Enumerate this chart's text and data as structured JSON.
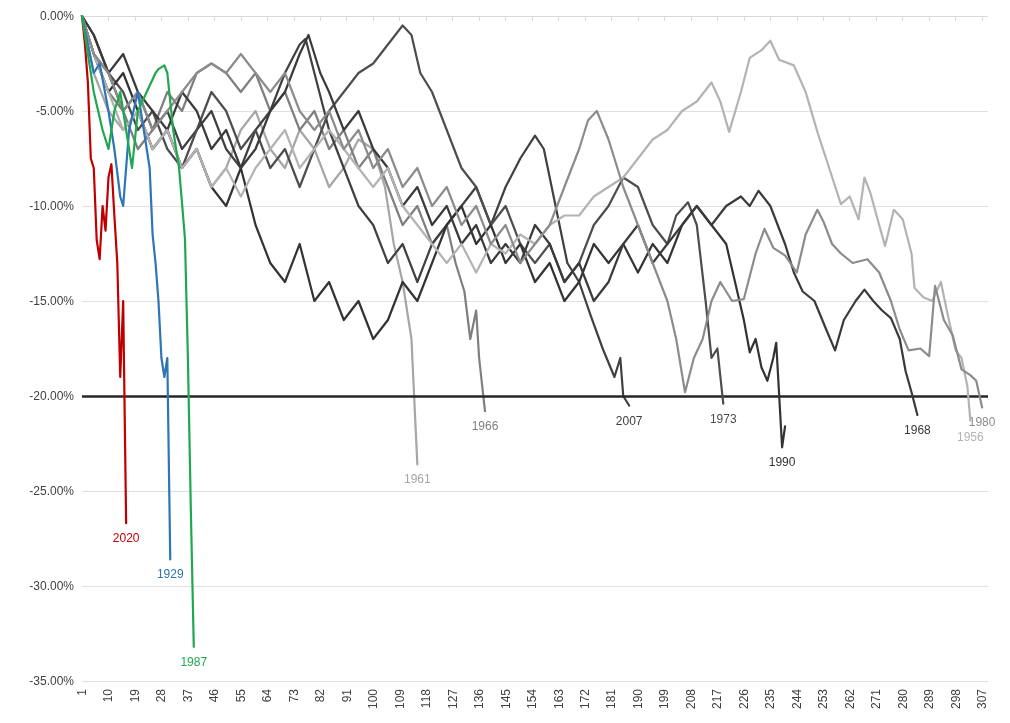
{
  "chart_data": {
    "type": "line",
    "xlim": [
      1,
      309
    ],
    "xticks": [
      1,
      10,
      19,
      28,
      37,
      46,
      55,
      64,
      73,
      82,
      91,
      100,
      109,
      118,
      127,
      136,
      145,
      154,
      163,
      172,
      181,
      190,
      199,
      208,
      217,
      226,
      235,
      244,
      253,
      262,
      271,
      280,
      289,
      298,
      307
    ],
    "ylim": [
      -35,
      0
    ],
    "yticks": [
      {
        "value": 0,
        "label": "0.00%"
      },
      {
        "value": -5,
        "label": "-5.00%"
      },
      {
        "value": -10,
        "label": "-10.00%"
      },
      {
        "value": -15,
        "label": "-15.00%"
      },
      {
        "value": -20,
        "label": "-20.00%"
      },
      {
        "value": -25,
        "label": "-25.00%"
      },
      {
        "value": -30,
        "label": "-30.00%"
      },
      {
        "value": -35,
        "label": "-35.00%"
      }
    ],
    "grid": "y",
    "legend": false,
    "marker": "none",
    "line_style": "solid",
    "ref_lines": [
      {
        "axis": "y",
        "value": -20,
        "color": "#262626"
      }
    ],
    "series": [
      {
        "name": "1961",
        "color": "#a6a6a6",
        "x": [
          1,
          5,
          10,
          15,
          20,
          25,
          30,
          35,
          40,
          45,
          50,
          55,
          60,
          65,
          70,
          75,
          80,
          85,
          90,
          95,
          100,
          104,
          107,
          110,
          112,
          113,
          115
        ],
        "values": [
          0,
          -3,
          -5,
          -6,
          -5,
          -7,
          -6,
          -8,
          -7,
          -9,
          -8,
          -6,
          -5,
          -7,
          -8,
          -6,
          -7,
          -9,
          -8,
          -6.5,
          -7,
          -9,
          -12,
          -14,
          -16,
          -17,
          -23.6
        ]
      },
      {
        "name": "1966",
        "color": "#7f7f7f",
        "x": [
          1,
          5,
          10,
          15,
          20,
          25,
          30,
          35,
          40,
          45,
          50,
          55,
          60,
          65,
          70,
          75,
          80,
          85,
          90,
          95,
          100,
          105,
          110,
          115,
          120,
          125,
          128,
          131,
          133,
          135,
          136,
          138
        ],
        "values": [
          0,
          -2,
          -4,
          -5,
          -7,
          -6,
          -4,
          -5,
          -3,
          -2.5,
          -3,
          -4,
          -3,
          -5,
          -4,
          -6,
          -5,
          -7,
          -6,
          -8,
          -7,
          -9,
          -11,
          -10,
          -12,
          -11,
          -13,
          -14.5,
          -17,
          -15.5,
          -18,
          -20.8
        ]
      },
      {
        "name": "2007",
        "color": "#404040",
        "x": [
          1,
          5,
          10,
          15,
          20,
          25,
          30,
          35,
          40,
          45,
          50,
          55,
          60,
          65,
          70,
          75,
          77,
          80,
          85,
          90,
          95,
          100,
          105,
          110,
          115,
          120,
          125,
          130,
          135,
          140,
          145,
          150,
          155,
          158,
          162,
          166,
          170,
          174,
          178,
          182,
          184,
          185,
          187
        ],
        "values": [
          0,
          -2,
          -3,
          -5,
          -4,
          -6,
          -5,
          -7,
          -6,
          -5,
          -7,
          -8,
          -6,
          -5,
          -3,
          -1.5,
          -1.2,
          -3,
          -6,
          -8,
          -10,
          -11,
          -13,
          -12,
          -14,
          -12,
          -11,
          -10,
          -9,
          -11,
          -9,
          -7.5,
          -6.3,
          -7,
          -10,
          -13,
          -14,
          -15.8,
          -17.5,
          -19,
          -18,
          -20,
          -20.5
        ]
      },
      {
        "name": "1973",
        "color": "#4d4d4d",
        "x": [
          1,
          5,
          10,
          15,
          20,
          25,
          30,
          35,
          40,
          45,
          50,
          55,
          60,
          65,
          70,
          75,
          80,
          85,
          90,
          95,
          100,
          105,
          110,
          113,
          116,
          120,
          125,
          130,
          135,
          140,
          145,
          150,
          155,
          160,
          165,
          170,
          175,
          180,
          185,
          190,
          195,
          200,
          203,
          207,
          210,
          213,
          215,
          217,
          219
        ],
        "values": [
          0,
          -1,
          -3,
          -4,
          -6,
          -5,
          -7,
          -8,
          -6,
          -4,
          -5,
          -7,
          -6,
          -8,
          -7,
          -9,
          -7,
          -5,
          -4,
          -3,
          -2.5,
          -1.5,
          -0.5,
          -1,
          -3,
          -4,
          -6,
          -8,
          -9,
          -11,
          -10,
          -12,
          -13,
          -12,
          -14,
          -13,
          -11,
          -10,
          -8.5,
          -9,
          -11,
          -12,
          -10.5,
          -9.8,
          -11,
          -15,
          -18,
          -17.5,
          -20.4
        ]
      },
      {
        "name": "1990",
        "color": "#333333",
        "x": [
          1,
          5,
          10,
          15,
          20,
          25,
          30,
          35,
          40,
          45,
          50,
          55,
          60,
          65,
          70,
          75,
          80,
          85,
          90,
          95,
          100,
          105,
          110,
          115,
          120,
          125,
          130,
          135,
          140,
          145,
          150,
          155,
          160,
          165,
          170,
          175,
          180,
          185,
          190,
          195,
          200,
          205,
          210,
          215,
          220,
          223,
          226,
          228,
          230,
          232,
          234,
          236,
          237,
          239,
          240
        ],
        "values": [
          0,
          -2,
          -4,
          -3,
          -5,
          -7,
          -6,
          -8,
          -7,
          -9,
          -10,
          -8,
          -11,
          -13,
          -14,
          -12,
          -15,
          -14,
          -16,
          -15,
          -17,
          -16,
          -14,
          -15,
          -13,
          -11,
          -10,
          -12,
          -11,
          -13,
          -12,
          -14,
          -13,
          -15,
          -14,
          -12,
          -13,
          -12,
          -13.5,
          -12,
          -13,
          -11,
          -10,
          -11,
          -12,
          -14,
          -16,
          -17.7,
          -17,
          -18.5,
          -19.2,
          -18,
          -17.2,
          -22.7,
          -21.6
        ]
      },
      {
        "name": "1968",
        "color": "#3a3a3a",
        "x": [
          1,
          5,
          10,
          15,
          20,
          25,
          30,
          35,
          40,
          45,
          50,
          55,
          60,
          65,
          70,
          75,
          78,
          82,
          85,
          90,
          95,
          100,
          105,
          110,
          115,
          120,
          125,
          130,
          135,
          140,
          145,
          150,
          155,
          160,
          165,
          170,
          175,
          180,
          185,
          190,
          195,
          200,
          205,
          210,
          215,
          220,
          225,
          228,
          231,
          235,
          240,
          243,
          246,
          250,
          254,
          257,
          260,
          264,
          267,
          270,
          273,
          276,
          279,
          281,
          283,
          285
        ],
        "values": [
          0,
          -1,
          -3,
          -2,
          -4,
          -5,
          -6,
          -4,
          -5,
          -7,
          -6,
          -8,
          -7,
          -5,
          -4,
          -2,
          -1,
          -3,
          -4,
          -6,
          -5,
          -7,
          -8,
          -10,
          -9,
          -11,
          -10,
          -12,
          -11,
          -13,
          -12,
          -13,
          -11,
          -12,
          -14,
          -13,
          -15,
          -14,
          -12,
          -11,
          -13,
          -12,
          -11,
          -10,
          -11,
          -10,
          -9.5,
          -10,
          -9.2,
          -10,
          -12,
          -13.5,
          -14.5,
          -15,
          -16.5,
          -17.6,
          -16,
          -15,
          -14.4,
          -15,
          -15.5,
          -15.9,
          -17,
          -18.7,
          -19.8,
          -21
        ]
      },
      {
        "name": "1956",
        "color": "#b3b3b3",
        "x": [
          1,
          5,
          10,
          15,
          20,
          25,
          30,
          35,
          40,
          45,
          50,
          55,
          60,
          65,
          70,
          75,
          80,
          85,
          90,
          95,
          100,
          105,
          110,
          115,
          120,
          125,
          130,
          135,
          140,
          145,
          150,
          155,
          160,
          165,
          170,
          175,
          180,
          185,
          190,
          195,
          200,
          205,
          210,
          215,
          218,
          221,
          225,
          228,
          232,
          235,
          238,
          243,
          247,
          251,
          255,
          259,
          262,
          265,
          267,
          269,
          272,
          274,
          277,
          280,
          283,
          284,
          287,
          290,
          293,
          295,
          298,
          300,
          302,
          303
        ],
        "values": [
          0,
          -2,
          -4,
          -6,
          -5,
          -7,
          -6,
          -8,
          -7,
          -9,
          -8,
          -9.5,
          -8,
          -7,
          -6,
          -8,
          -7,
          -6,
          -7,
          -8,
          -9,
          -8,
          -10,
          -11,
          -12,
          -13,
          -12,
          -13.5,
          -12,
          -12.5,
          -11.5,
          -12,
          -11,
          -10.5,
          -10.5,
          -9.5,
          -9,
          -8.5,
          -7.5,
          -6.5,
          -6,
          -5,
          -4.5,
          -3.5,
          -4.5,
          -6.1,
          -4,
          -2.2,
          -1.8,
          -1.3,
          -2.3,
          -2.6,
          -4,
          -6.1,
          -8,
          -9.9,
          -9.5,
          -10.7,
          -8.5,
          -9.3,
          -11,
          -12.1,
          -10.2,
          -10.7,
          -12.5,
          -14.3,
          -14.8,
          -15,
          -14,
          -15.5,
          -17.6,
          -18,
          -19.5,
          -21.3
        ]
      },
      {
        "name": "1980",
        "color": "#8c8c8c",
        "x": [
          1,
          5,
          10,
          15,
          20,
          25,
          30,
          35,
          40,
          45,
          50,
          55,
          60,
          65,
          70,
          75,
          80,
          85,
          90,
          95,
          100,
          105,
          110,
          115,
          120,
          125,
          130,
          135,
          140,
          145,
          150,
          155,
          160,
          165,
          170,
          173,
          176,
          180,
          185,
          190,
          195,
          200,
          203,
          206,
          209,
          212,
          215,
          218,
          222,
          226,
          230,
          233,
          236,
          240,
          244,
          247,
          251,
          253,
          256,
          259,
          263,
          268,
          272,
          276,
          279,
          282,
          286,
          289,
          291,
          294,
          297,
          300,
          303,
          305,
          307
        ],
        "values": [
          0,
          -2,
          -3,
          -5,
          -4,
          -6,
          -5,
          -4,
          -3,
          -2.5,
          -3,
          -2,
          -3,
          -4,
          -3,
          -5,
          -6,
          -5,
          -7,
          -6,
          -8,
          -7,
          -9,
          -8,
          -10,
          -9,
          -11,
          -10,
          -12,
          -11,
          -13,
          -12,
          -11,
          -9,
          -7,
          -5.5,
          -5,
          -6.5,
          -9,
          -11,
          -13,
          -15,
          -17,
          -19.8,
          -18,
          -17,
          -15,
          -14,
          -15,
          -14.9,
          -12.5,
          -11.2,
          -12.2,
          -12.6,
          -13.5,
          -11.5,
          -10.2,
          -10.8,
          -12,
          -12.5,
          -13,
          -12.8,
          -13.5,
          -15,
          -16.5,
          -17.6,
          -17.5,
          -17.9,
          -14.2,
          -16,
          -16.8,
          -18.6,
          -18.9,
          -19.2,
          -20.6
        ]
      },
      {
        "name": "2020",
        "color": "#c00000",
        "x": [
          1,
          2,
          3,
          4,
          5,
          6,
          7,
          8,
          9,
          10,
          11,
          12,
          13,
          14,
          15,
          16
        ],
        "values": [
          0,
          -1.5,
          -3.5,
          -7.5,
          -8,
          -11.8,
          -12.8,
          -10,
          -11.3,
          -8.5,
          -7.8,
          -10.5,
          -13,
          -19,
          -15,
          -26.7
        ]
      },
      {
        "name": "1929",
        "color": "#2e75b6",
        "x": [
          1,
          3,
          5,
          7,
          10,
          12,
          14,
          15,
          17,
          20,
          22,
          24,
          25,
          26,
          27,
          28,
          29,
          30,
          31
        ],
        "values": [
          0,
          -1.5,
          -3,
          -2.5,
          -5,
          -7,
          -9.5,
          -10,
          -6,
          -4,
          -6,
          -8,
          -11.5,
          -13,
          -15,
          -18,
          -19,
          -18,
          -28.6
        ]
      },
      {
        "name": "1987",
        "color": "#1fa84f",
        "x": [
          1,
          3,
          5,
          8,
          10,
          12,
          14,
          16,
          18,
          20,
          23,
          26,
          27,
          29,
          30,
          32,
          34,
          36,
          37,
          38,
          39
        ],
        "values": [
          0,
          -2,
          -4,
          -6,
          -7,
          -5,
          -4,
          -6,
          -8,
          -5,
          -4,
          -3,
          -2.8,
          -2.6,
          -3,
          -6,
          -8,
          -11.7,
          -18,
          -26,
          -33.2
        ]
      }
    ]
  }
}
